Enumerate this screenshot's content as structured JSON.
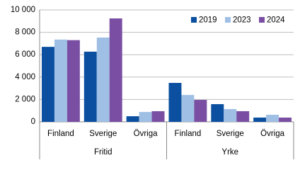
{
  "chart_data": {
    "type": "bar",
    "groups": [
      {
        "name": "Fritid",
        "categories": [
          "Finland",
          "Sverige",
          "Övriga"
        ]
      },
      {
        "name": "Yrke",
        "categories": [
          "Finland",
          "Sverige",
          "Övriga"
        ]
      }
    ],
    "series": [
      {
        "name": "2019",
        "color": "#0b4fa0",
        "values": [
          6700,
          6270,
          500,
          3480,
          1580,
          380
        ]
      },
      {
        "name": "2023",
        "color": "#9fbfe5",
        "values": [
          7350,
          7530,
          880,
          2400,
          1140,
          630
        ]
      },
      {
        "name": "2024",
        "color": "#7a4fa3",
        "values": [
          7300,
          9240,
          950,
          1960,
          950,
          380
        ]
      }
    ],
    "ylim": [
      0,
      10000
    ],
    "yticks": [
      0,
      {
        "value": 2000,
        "label": "2 000"
      },
      {
        "value": 4000,
        "label": "4 000"
      },
      {
        "value": 6000,
        "label": "6 000"
      },
      {
        "value": 8000,
        "label": "8 000"
      },
      {
        "value": 10000,
        "label": "10 000"
      }
    ],
    "grid": true,
    "legend": "top-right"
  }
}
